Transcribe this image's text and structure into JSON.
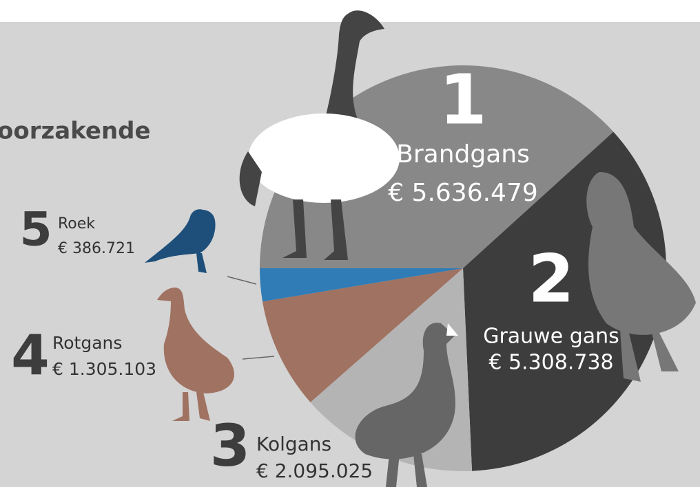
{
  "chart_data": {
    "type": "pie",
    "title": "oorzakende",
    "categories": [
      "Brandgans",
      "Grauwe gans",
      "Kolgans",
      "Rotgans",
      "Roek"
    ],
    "ranks": [
      "1",
      "2",
      "3",
      "4",
      "5"
    ],
    "values": [
      5636479,
      5308738,
      2095025,
      1305103,
      386721
    ],
    "value_labels": [
      "€ 5.636.479",
      "€ 5.308.738",
      "€ 2.095.025",
      "€ 1.305.103",
      "€ 386.721"
    ],
    "colors": [
      "#888888",
      "#3d3d3d",
      "#b4b4b4",
      "#a07262",
      "#2f7cb6"
    ]
  }
}
